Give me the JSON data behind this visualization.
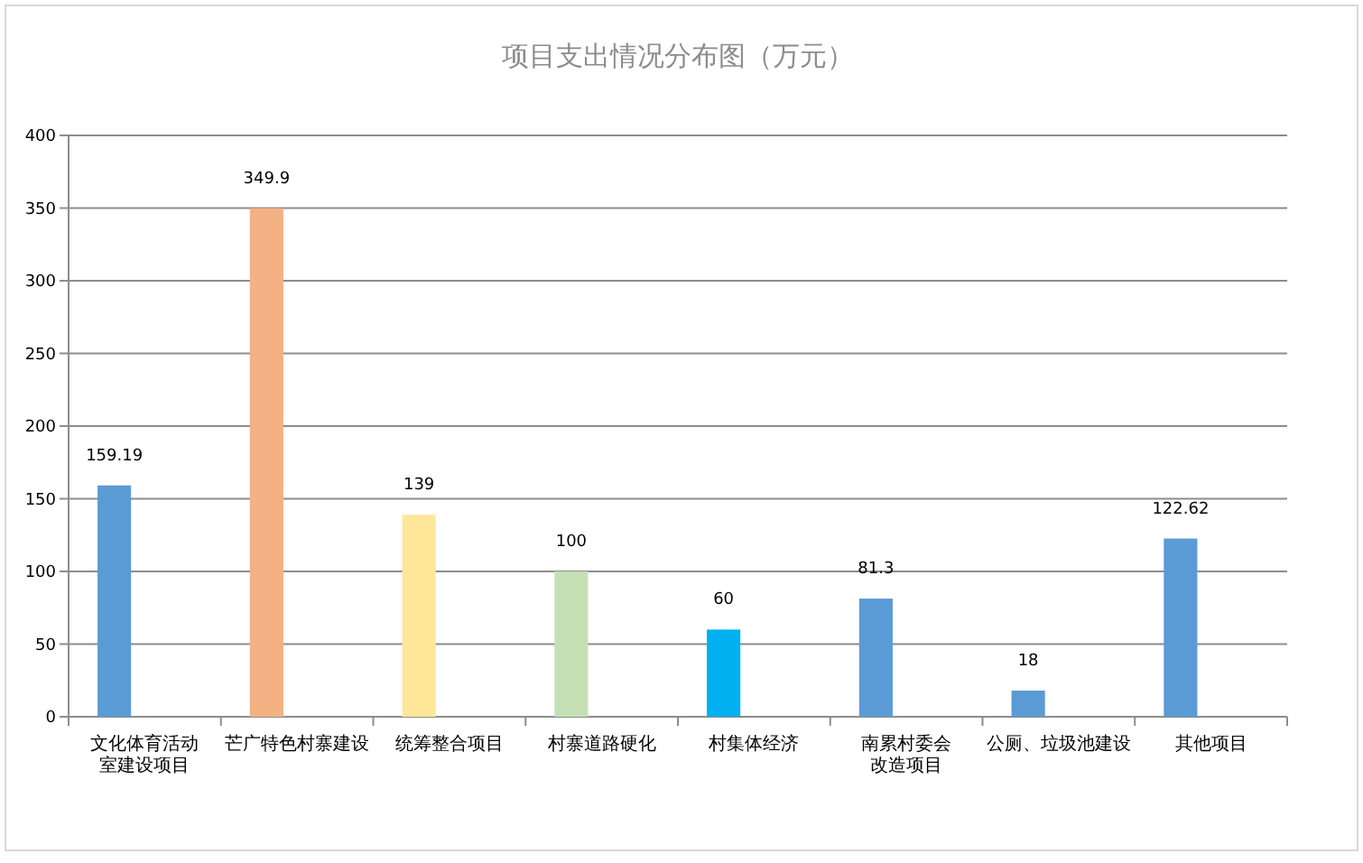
{
  "chart_data": {
    "type": "bar",
    "title": "项目支出情况分布图（万元）",
    "categories": [
      "文化体育活动室建设项目",
      "芒广特色村寨建设",
      "统筹整合项目",
      "村寨道路硬化",
      "村集体经济",
      "南累村委会改造项目",
      "公厕、垃圾池建设",
      "其他项目"
    ],
    "values": [
      159.19,
      349.9,
      139,
      100,
      60,
      81.3,
      18,
      122.62
    ],
    "colors": [
      "#5b9bd5",
      "#f4b183",
      "#ffe699",
      "#c5e0b4",
      "#00b0f0",
      "#5b9bd5",
      "#5b9bd5",
      "#5b9bd5"
    ],
    "value_labels": [
      "159.19",
      "349.9",
      "139",
      "100",
      "60",
      "81.3",
      "18",
      "122.62"
    ],
    "ylim": [
      0,
      400
    ],
    "yticks": [
      0,
      50,
      100,
      150,
      200,
      250,
      300,
      350,
      400
    ],
    "grid": "y"
  }
}
